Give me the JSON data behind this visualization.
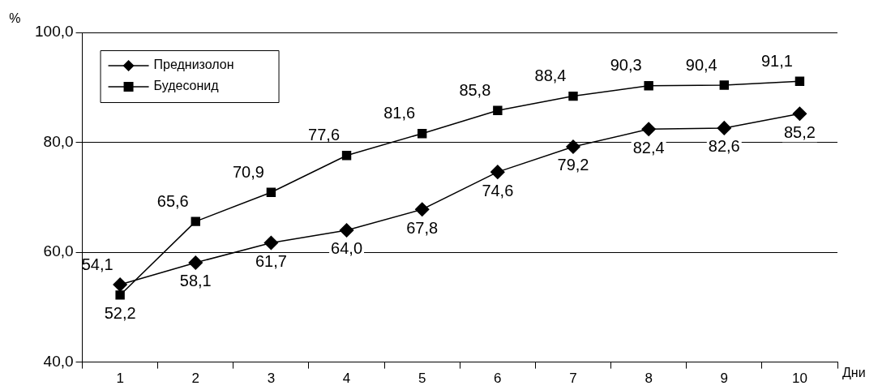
{
  "chart_data": {
    "type": "line",
    "xlabel": "Дни",
    "ylabel": "%",
    "categories": [
      "1",
      "2",
      "3",
      "4",
      "5",
      "6",
      "7",
      "8",
      "9",
      "10"
    ],
    "series": [
      {
        "name": "Преднизолон",
        "color": "#000000",
        "marker": "diamond",
        "values": [
          54.1,
          58.1,
          61.7,
          64.0,
          67.8,
          74.6,
          79.2,
          82.4,
          82.6,
          85.2
        ],
        "value_labels": [
          "54,1",
          "58,1",
          "61,7",
          "64,0",
          "67,8",
          "74,6",
          "79,2",
          "82,4",
          "82,6",
          "85,2"
        ]
      },
      {
        "name": "Будесонид",
        "color": "#000000",
        "marker": "square",
        "values": [
          52.2,
          65.6,
          70.9,
          77.6,
          81.6,
          85.8,
          88.4,
          90.3,
          90.4,
          91.1
        ],
        "value_labels": [
          "52,2",
          "65,6",
          "70,9",
          "77,6",
          "81,6",
          "85,8",
          "88,4",
          "90,3",
          "90,4",
          "91,1"
        ]
      }
    ],
    "ylim": [
      40,
      100
    ],
    "yticks": [
      {
        "value": 40,
        "label": "40,0"
      },
      {
        "value": 60,
        "label": "60,0"
      },
      {
        "value": 80,
        "label": "80,0"
      },
      {
        "value": 100,
        "label": "100,0"
      }
    ],
    "grid": "y",
    "legend": "top left"
  }
}
